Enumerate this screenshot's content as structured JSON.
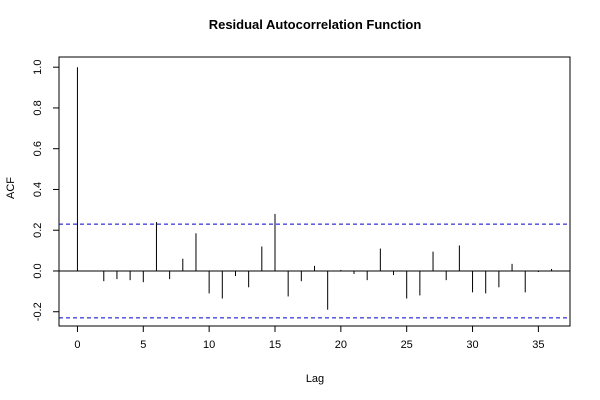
{
  "chart_data": {
    "type": "bar",
    "title": "Residual Autocorrelation Function",
    "xlabel": "Lag",
    "ylabel": "ACF",
    "xlim": [
      -1.4,
      37.4
    ],
    "ylim": [
      -0.27,
      1.05
    ],
    "x_ticks": [
      0,
      5,
      10,
      15,
      20,
      25,
      30,
      35
    ],
    "y_ticks": [
      -0.2,
      0.0,
      0.2,
      0.4,
      0.6,
      0.8,
      1.0
    ],
    "y_tick_labels": [
      "-0.2",
      "0.0",
      "0.2",
      "0.4",
      "0.6",
      "0.8",
      "1.0"
    ],
    "confidence_bounds": [
      0.23,
      -0.23
    ],
    "lags": [
      0,
      1,
      2,
      3,
      4,
      5,
      6,
      7,
      8,
      9,
      10,
      11,
      12,
      13,
      14,
      15,
      16,
      17,
      18,
      19,
      20,
      21,
      22,
      23,
      24,
      25,
      26,
      27,
      28,
      29,
      30,
      31,
      32,
      33,
      34,
      35,
      36
    ],
    "values": [
      1.0,
      0.0,
      -0.05,
      -0.04,
      -0.045,
      -0.055,
      0.24,
      -0.04,
      0.06,
      0.185,
      -0.11,
      -0.135,
      -0.025,
      -0.08,
      0.12,
      0.28,
      -0.125,
      -0.05,
      0.025,
      -0.19,
      0.005,
      -0.015,
      -0.045,
      0.11,
      -0.02,
      -0.135,
      -0.12,
      0.095,
      -0.045,
      0.125,
      -0.105,
      -0.11,
      -0.08,
      0.035,
      -0.105,
      -0.005,
      0.01
    ],
    "grid": false,
    "colors": {
      "bars": "#000000",
      "bounds": "#0000cc",
      "zero_line": "#000000"
    }
  }
}
